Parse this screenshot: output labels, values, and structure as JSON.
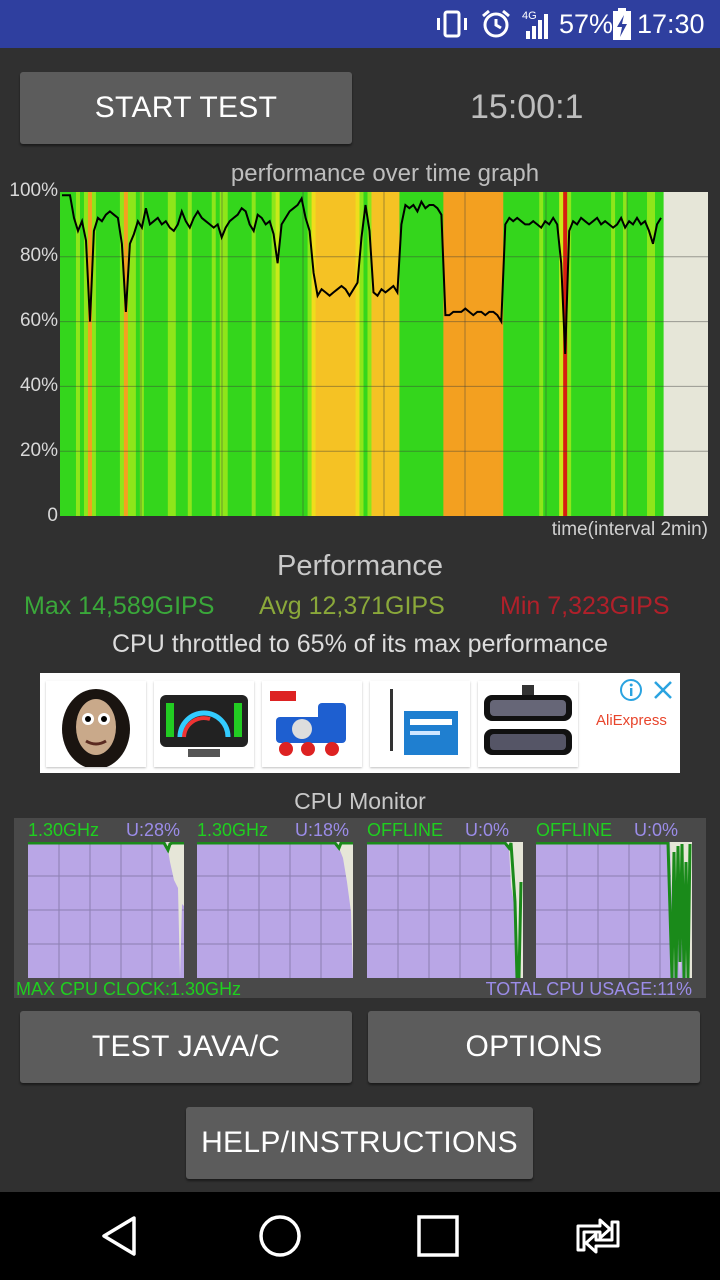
{
  "status_bar": {
    "network_label": "4G",
    "battery_percent": "57%",
    "time": "17:30",
    "icons": [
      "vibrate-icon",
      "alarm-icon",
      "signal-icon",
      "battery-charging-icon"
    ]
  },
  "controls": {
    "start_test_label": "START TEST",
    "timer": "15:00:1"
  },
  "graph": {
    "title": "performance over time graph",
    "y_ticks": [
      "100%",
      "80%",
      "60%",
      "40%",
      "20%",
      "0"
    ],
    "x_label": "time(interval 2min)"
  },
  "chart_data": {
    "type": "area",
    "title": "performance over time graph",
    "xlabel": "time(interval 2min)",
    "ylabel": "",
    "ylim": [
      0,
      100
    ],
    "grid": true,
    "y_ticks": [
      "0",
      "20%",
      "40%",
      "60%",
      "80%",
      "100%"
    ],
    "series": [
      {
        "values": [
          99,
          99,
          99,
          92,
          88,
          91,
          85,
          60,
          88,
          92,
          91,
          93,
          94,
          93,
          92,
          84,
          63,
          84,
          87,
          91,
          89,
          95,
          90,
          91,
          92,
          90,
          91,
          89,
          88,
          90,
          94,
          91,
          89,
          92,
          94,
          92,
          91,
          90,
          89,
          90,
          86,
          89,
          91,
          92,
          93,
          95,
          94,
          90,
          88,
          93,
          92,
          90,
          91,
          87,
          78,
          90,
          92,
          94,
          95,
          96,
          98,
          92,
          88,
          75,
          68,
          70,
          69,
          68,
          69,
          70,
          71,
          70,
          68,
          70,
          72,
          86,
          96,
          88,
          69,
          68,
          70,
          69,
          70,
          71,
          69,
          90,
          96,
          95,
          96,
          94,
          97,
          95,
          96,
          96,
          95,
          93,
          62,
          62,
          63,
          63,
          63,
          64,
          63,
          62,
          63,
          63,
          62,
          63,
          63,
          62,
          60,
          90,
          92,
          91,
          92,
          91,
          90,
          90,
          91,
          90,
          89,
          91,
          90,
          92,
          90,
          78,
          50,
          88,
          91,
          90,
          92,
          91,
          90,
          91,
          92,
          90,
          91,
          90,
          89,
          90,
          92,
          89,
          91,
          90,
          92,
          90,
          91,
          88,
          84,
          90,
          92
        ]
      }
    ]
  },
  "performance": {
    "title": "Performance",
    "max": "Max 14,589GIPS",
    "avg": "Avg 12,371GIPS",
    "min": "Min 7,323GIPS",
    "throttle_msg": "CPU throttled to 65% of its max performance"
  },
  "ad": {
    "brand": "AliExpress",
    "items": [
      "product-face-mask",
      "product-car-gauge",
      "product-toy-train",
      "product-router-box",
      "product-mirror-dashcam"
    ]
  },
  "cpu_monitor": {
    "title": "CPU Monitor",
    "cores": [
      {
        "freq": "1.30GHz",
        "usage": "U:28%"
      },
      {
        "freq": "1.30GHz",
        "usage": "U:18%"
      },
      {
        "freq": "OFFLINE",
        "usage": "U:0%"
      },
      {
        "freq": "OFFLINE",
        "usage": "U:0%"
      }
    ],
    "max_clock": "MAX CPU CLOCK:1.30GHz",
    "total_usage": "TOTAL CPU USAGE:11%"
  },
  "buttons": {
    "test_java_c": "TEST JAVA/C",
    "options": "OPTIONS",
    "help": "HELP/INSTRUCTIONS"
  },
  "nav": {
    "items": [
      "back-icon",
      "home-icon",
      "recents-icon",
      "rotate-icon"
    ]
  },
  "colors": {
    "status_bar": "#2f3f9f",
    "background": "#303030",
    "button": "#5c5c5c",
    "max_green": "#3aa83a",
    "avg_olive": "#8aa83a",
    "min_red": "#b0202a",
    "cpu_fill": "#b9a6e6",
    "cpu_text": "#1fcf1f",
    "usage_text": "#9b8ce8"
  }
}
